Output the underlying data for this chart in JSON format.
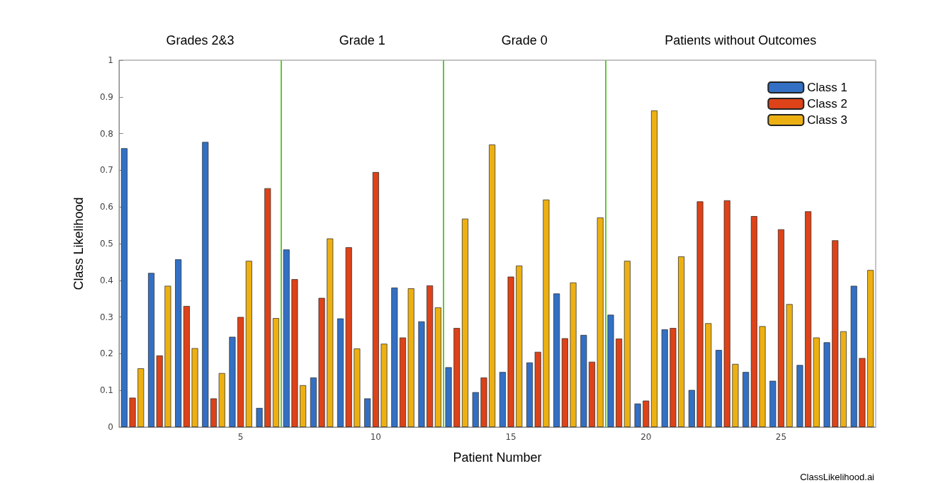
{
  "chart_data": {
    "type": "bar",
    "xlabel": "Patient Number",
    "ylabel": "Class Likelihood",
    "x": [
      1,
      2,
      3,
      4,
      5,
      6,
      7,
      8,
      9,
      10,
      11,
      12,
      13,
      14,
      15,
      16,
      17,
      18,
      19,
      20,
      21,
      22,
      23,
      24,
      25,
      26,
      27,
      28
    ],
    "series": [
      {
        "name": "Class 1",
        "color": "#3370c4",
        "values": [
          0.76,
          0.42,
          0.457,
          0.777,
          0.246,
          0.052,
          0.484,
          0.135,
          0.296,
          0.078,
          0.38,
          0.288,
          0.163,
          0.095,
          0.15,
          0.176,
          0.364,
          0.251,
          0.306,
          0.064,
          0.266,
          0.101,
          0.21,
          0.15,
          0.126,
          0.169,
          0.231,
          0.385
        ]
      },
      {
        "name": "Class 2",
        "color": "#dd4218",
        "values": [
          0.08,
          0.195,
          0.33,
          0.078,
          0.3,
          0.651,
          0.403,
          0.352,
          0.49,
          0.695,
          0.244,
          0.386,
          0.27,
          0.135,
          0.41,
          0.205,
          0.242,
          0.178,
          0.241,
          0.072,
          0.27,
          0.615,
          0.618,
          0.575,
          0.539,
          0.588,
          0.509,
          0.188
        ]
      },
      {
        "name": "Class 3",
        "color": "#edb013",
        "values": [
          0.16,
          0.385,
          0.215,
          0.147,
          0.453,
          0.297,
          0.114,
          0.514,
          0.214,
          0.227,
          0.378,
          0.326,
          0.568,
          0.77,
          0.44,
          0.62,
          0.394,
          0.571,
          0.453,
          0.863,
          0.465,
          0.283,
          0.172,
          0.275,
          0.335,
          0.244,
          0.261,
          0.428
        ]
      }
    ],
    "xlim": [
      0.5,
      28.5
    ],
    "xticks": [
      5,
      10,
      15,
      20,
      25
    ],
    "ylim": [
      0,
      1
    ],
    "yticks": [
      0,
      0.1,
      0.2,
      0.3,
      0.4,
      0.5,
      0.6,
      0.7,
      0.8,
      0.9,
      1
    ],
    "ref_lines": [
      {
        "axis": "x",
        "value": 6.5,
        "color": "#5ec935"
      },
      {
        "axis": "x",
        "value": 12.5,
        "color": "#5ec935"
      },
      {
        "axis": "x",
        "value": 18.5,
        "color": "#5ec935"
      }
    ],
    "annotations": [
      "Grades 2&3",
      "Grade 1",
      "Grade 0",
      "Patients without Outcomes",
      "ClassLikelihood.ai"
    ],
    "grid": false,
    "legend": "top right"
  }
}
